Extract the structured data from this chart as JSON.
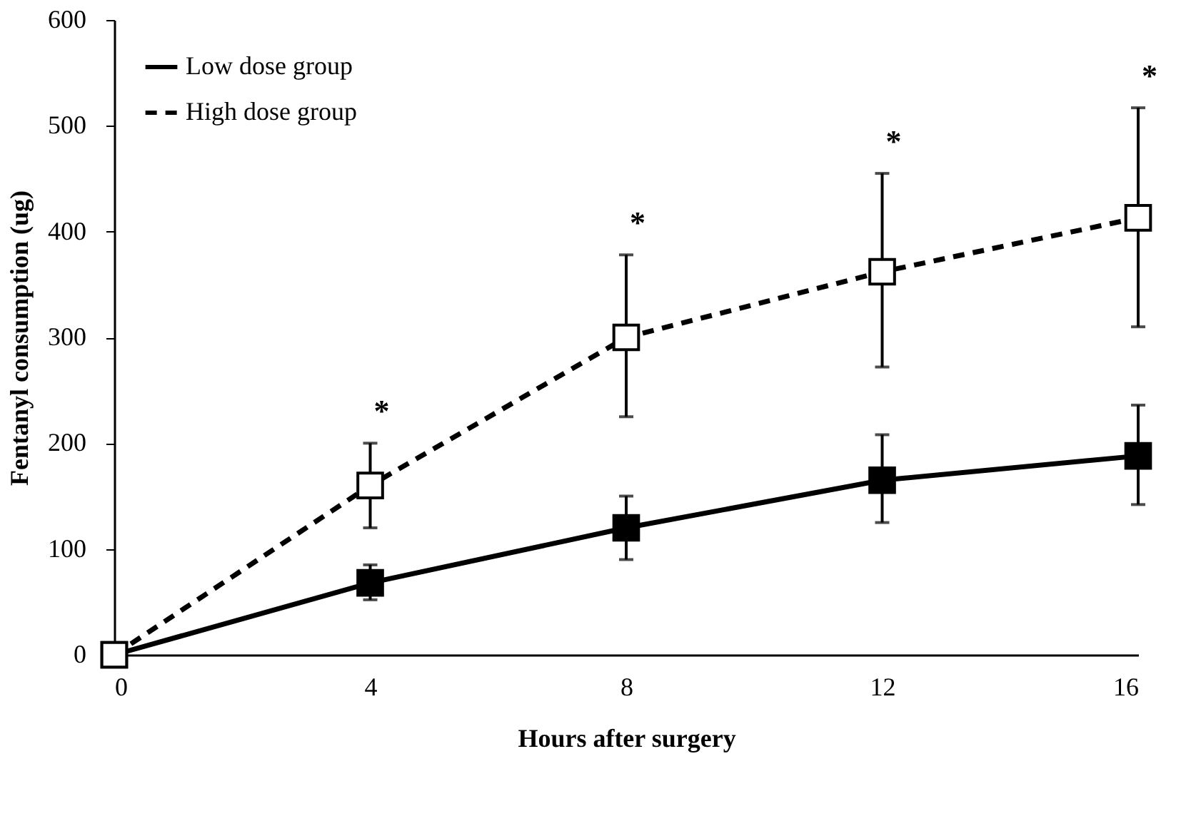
{
  "chart_data": {
    "type": "line",
    "xlabel": "Hours after surgery",
    "ylabel": "Fentanyl consumption (ug)",
    "x": [
      0,
      4,
      8,
      12,
      16
    ],
    "xlim": [
      0,
      16
    ],
    "xticks": [
      0,
      4,
      8,
      12,
      16
    ],
    "ylim": [
      0,
      600
    ],
    "yticks": [
      0,
      100,
      200,
      300,
      400,
      500,
      600
    ],
    "grid": false,
    "legend": "top left",
    "marker": "square",
    "series": [
      {
        "name": "Low dose group",
        "color": "#000000",
        "line_style": "solid",
        "values": [
          0,
          68,
          120,
          165,
          188
        ],
        "errors": [
          null,
          [
            52,
            85
          ],
          [
            90,
            150
          ],
          [
            125,
            208
          ],
          [
            142,
            236
          ]
        ]
      },
      {
        "name": "High dose group",
        "color": "#000000",
        "line_style": "dashed",
        "values": [
          0,
          160,
          300,
          362,
          413
        ],
        "errors": [
          null,
          [
            120,
            200
          ],
          [
            225,
            378
          ],
          [
            272,
            455
          ],
          [
            310,
            517
          ]
        ]
      }
    ],
    "annotations": [
      {
        "text": "*",
        "x": 4,
        "y": 200
      },
      {
        "text": "*",
        "x": 8,
        "y": 378
      },
      {
        "text": "*",
        "x": 12,
        "y": 455
      },
      {
        "text": "*",
        "x": 16,
        "y": 517
      }
    ]
  }
}
